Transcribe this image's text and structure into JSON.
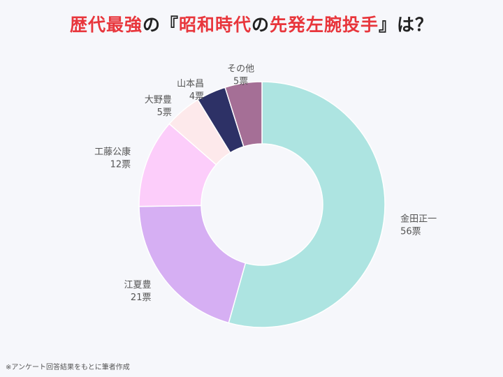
{
  "title_parts": [
    {
      "text": "歴代最強",
      "color": "red"
    },
    {
      "text": "の『",
      "color": "dark"
    },
    {
      "text": "昭和時代",
      "color": "red"
    },
    {
      "text": "の",
      "color": "dark"
    },
    {
      "text": "先発左腕投手",
      "color": "red"
    },
    {
      "text": "』は？",
      "color": "dark"
    }
  ],
  "footnote": "※アンケート回答結果をもとに筆者作成",
  "chart_data": {
    "type": "pie",
    "donut": true,
    "unit": "票",
    "slices": [
      {
        "name": "金田正一",
        "value": 56,
        "label": "56票",
        "color": "#ade4e1"
      },
      {
        "name": "江夏豊",
        "value": 21,
        "label": "21票",
        "color": "#d6aff3"
      },
      {
        "name": "工藤公康",
        "value": 12,
        "label": "12票",
        "color": "#fccdfa"
      },
      {
        "name": "大野豊",
        "value": 5,
        "label": "5票",
        "color": "#fde9eb"
      },
      {
        "name": "山本昌",
        "value": 4,
        "label": "4票",
        "color": "#2d3166"
      },
      {
        "name": "その他",
        "value": 5,
        "label": "5票",
        "color": "#a56f96"
      }
    ]
  }
}
